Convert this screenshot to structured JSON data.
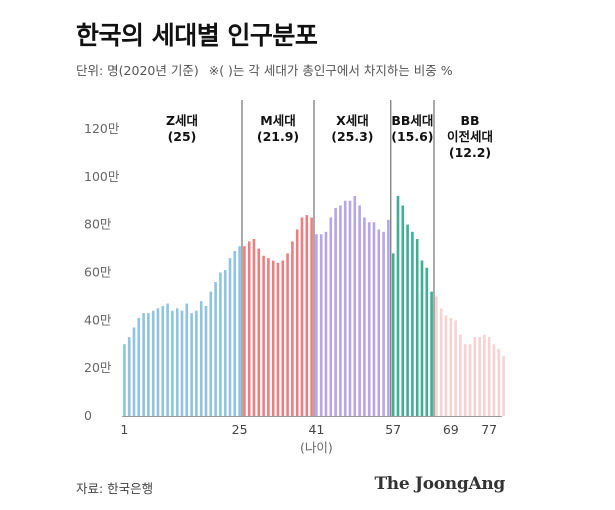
{
  "title": "한국의 세대별 인구분포",
  "subtitle": {
    "unit": "단위: 명(2020년 기준)",
    "note": "※( )는 각 세대가 총인구에서 차지하는 비중 %"
  },
  "footer": {
    "source": "자료: 한국은행",
    "brand": "The JoongAng"
  },
  "chart_data": {
    "type": "bar",
    "title": "한국의 세대별 인구분포",
    "unit": "명",
    "xlabel": "(나이)",
    "ylabel": "",
    "ylim": [
      0,
      1250000
    ],
    "yticks": [
      0,
      200000,
      400000,
      600000,
      800000,
      1000000,
      1200000
    ],
    "ytick_labels": [
      "0",
      "20만",
      "40만",
      "60만",
      "80만",
      "100만",
      "120만"
    ],
    "xlim": [
      1,
      80
    ],
    "xticks": [
      1,
      25,
      41,
      57,
      69,
      77
    ],
    "xtick_labels": [
      "1",
      "25",
      "41",
      "57",
      "69",
      "77"
    ],
    "grid": false,
    "generations": [
      {
        "name": "Z세대",
        "share": "(25)",
        "start": 1,
        "end": 25,
        "color": "#8fc4df"
      },
      {
        "name": "M세대",
        "share": "(21.9)",
        "start": 26,
        "end": 40,
        "color": "#ee7d80"
      },
      {
        "name": "X세대",
        "share": "(25.3)",
        "start": 41,
        "end": 56,
        "color": "#b7a6e6"
      },
      {
        "name": "BB세대",
        "share": "(15.6)",
        "start": 57,
        "end": 65,
        "color": "#3fae93"
      },
      {
        "name": "BB\n이전세대",
        "share": "(12.2)",
        "start": 66,
        "end": 80,
        "color": "#f7d2d2"
      }
    ],
    "x": [
      1,
      2,
      3,
      4,
      5,
      6,
      7,
      8,
      9,
      10,
      11,
      12,
      13,
      14,
      15,
      16,
      17,
      18,
      19,
      20,
      21,
      22,
      23,
      24,
      25,
      26,
      27,
      28,
      29,
      30,
      31,
      32,
      33,
      34,
      35,
      36,
      37,
      38,
      39,
      40,
      41,
      42,
      43,
      44,
      45,
      46,
      47,
      48,
      49,
      50,
      51,
      52,
      53,
      54,
      55,
      56,
      57,
      58,
      59,
      60,
      61,
      62,
      63,
      64,
      65,
      66,
      67,
      68,
      69,
      70,
      71,
      72,
      73,
      74,
      75,
      76,
      77,
      78,
      79,
      80
    ],
    "values": [
      300000,
      330000,
      370000,
      410000,
      430000,
      430000,
      440000,
      450000,
      460000,
      470000,
      440000,
      450000,
      440000,
      470000,
      430000,
      440000,
      480000,
      460000,
      520000,
      560000,
      600000,
      610000,
      660000,
      690000,
      710000,
      710000,
      730000,
      740000,
      700000,
      670000,
      660000,
      650000,
      640000,
      650000,
      680000,
      730000,
      780000,
      830000,
      840000,
      830000,
      760000,
      760000,
      770000,
      830000,
      870000,
      880000,
      900000,
      900000,
      920000,
      880000,
      830000,
      810000,
      810000,
      780000,
      770000,
      820000,
      680000,
      920000,
      880000,
      800000,
      770000,
      740000,
      650000,
      620000,
      520000,
      500000,
      450000,
      420000,
      410000,
      400000,
      340000,
      300000,
      300000,
      330000,
      330000,
      340000,
      330000,
      300000,
      280000,
      250000
    ]
  }
}
